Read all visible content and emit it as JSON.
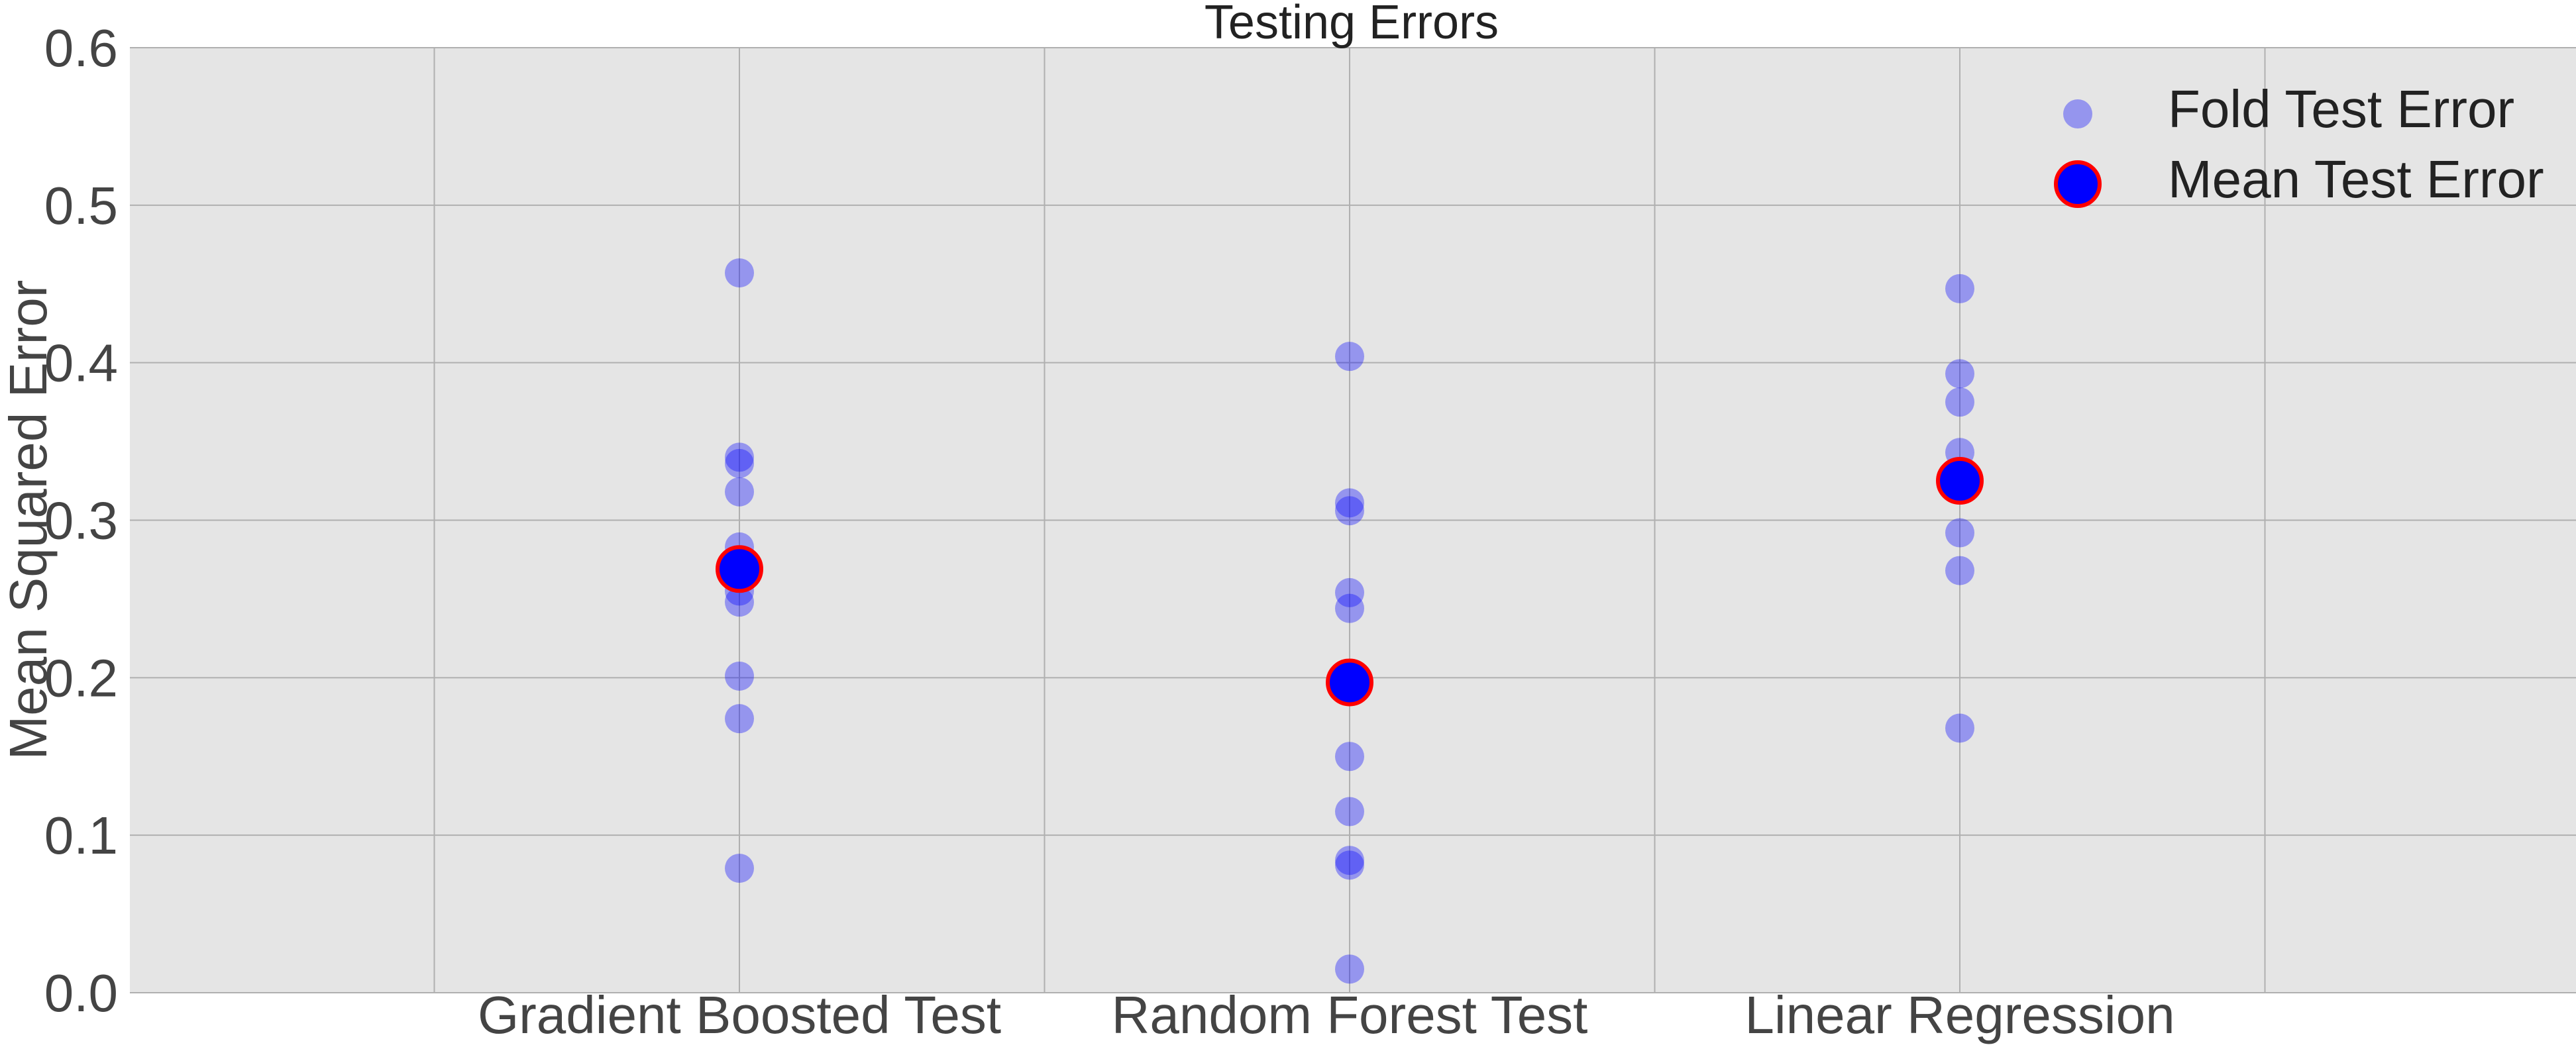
{
  "chart_data": {
    "type": "scatter",
    "title": "Testing Errors",
    "xlabel": "",
    "ylabel": "Mean Squared Error",
    "categories": [
      "Gradient Boosted Test",
      "Random Forest Test",
      "Linear Regression"
    ],
    "ylim": [
      0,
      0.6
    ],
    "yticks": [
      0.0,
      0.1,
      0.2,
      0.3,
      0.4,
      0.5,
      0.6
    ],
    "ytick_labels": [
      "0.0",
      "0.1",
      "0.2",
      "0.3",
      "0.4",
      "0.5",
      "0.6"
    ],
    "grid": true,
    "legend_position": "top-right",
    "series": [
      {
        "name": "Fold Test Error",
        "marker": "circle",
        "color": "#0000ff",
        "opacity": 0.35,
        "points": [
          {
            "category": "Gradient Boosted Test",
            "values": [
              0.457,
              0.34,
              0.336,
              0.318,
              0.283,
              0.255,
              0.248,
              0.201,
              0.174,
              0.079
            ]
          },
          {
            "category": "Random Forest Test",
            "values": [
              0.404,
              0.311,
              0.306,
              0.254,
              0.244,
              0.15,
              0.115,
              0.084,
              0.081,
              0.015
            ]
          },
          {
            "category": "Linear Regression",
            "values": [
              0.447,
              0.393,
              0.375,
              0.343,
              0.292,
              0.268,
              0.168
            ]
          }
        ]
      },
      {
        "name": "Mean Test Error",
        "marker": "circle",
        "color": "#0000ff",
        "edge_color": "#ff0000",
        "points": [
          {
            "category": "Gradient Boosted Test",
            "values": [
              0.269
            ]
          },
          {
            "category": "Random Forest Test",
            "values": [
              0.197
            ]
          },
          {
            "category": "Linear Regression",
            "values": [
              0.325
            ]
          }
        ]
      }
    ]
  },
  "colors": {
    "plot_background": "#e5e5e5",
    "grid": "#b0b0b0",
    "fold_marker": "#0000ff",
    "mean_fill": "#0000ff",
    "mean_edge": "#ff0000"
  }
}
